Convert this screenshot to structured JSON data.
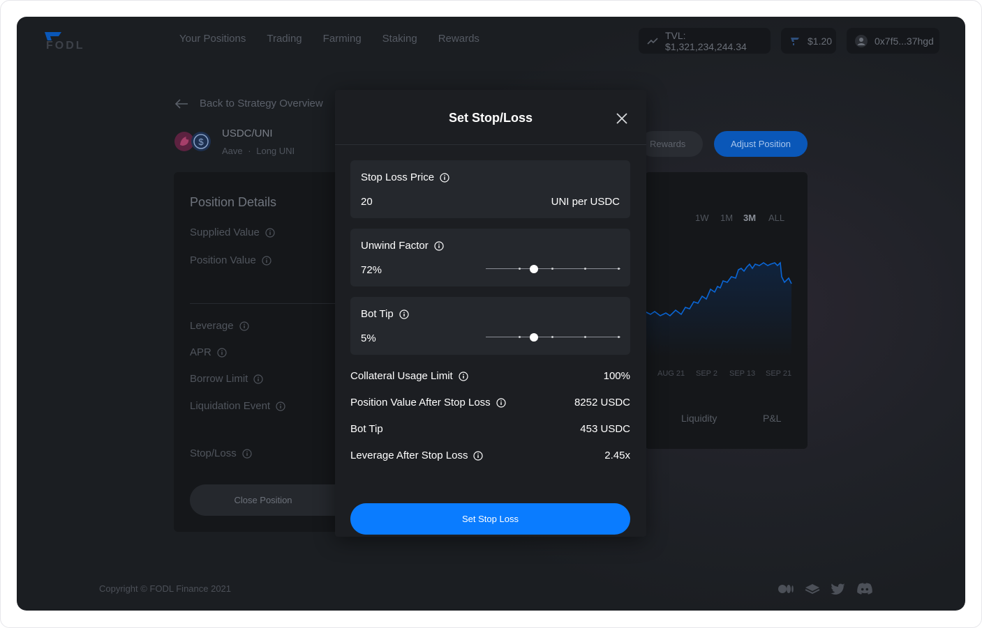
{
  "header": {
    "logo_text": "FODL",
    "nav": [
      "Your Positions",
      "Trading",
      "Farming",
      "Staking",
      "Rewards"
    ],
    "tvl": "TVL: $1,321,234,244.34",
    "price": "$1.20",
    "wallet": "0x7f5...37hgd"
  },
  "strategy": {
    "back_label": "Back to Strategy Overview",
    "pair": "USDC/UNI",
    "platform": "Aave",
    "separator": "·",
    "direction": "Long UNI",
    "rewards_label": "Rewards",
    "adjust_label": "Adjust Position"
  },
  "details": {
    "title": "Position Details",
    "rows": [
      "Supplied Value",
      "Position Value",
      "Leverage",
      "APR",
      "Borrow Limit",
      "Liquidation Event",
      "Stop/Loss"
    ],
    "close_label": "Close Position"
  },
  "chart_panel": {
    "ranges": [
      "1W",
      "1M",
      "3M",
      "ALL"
    ],
    "active_range": "3M",
    "x_ticks": [
      "AUG 21",
      "SEP 2",
      "SEP 13",
      "SEP 21"
    ],
    "tabs": [
      "Liquidity",
      "P&L"
    ]
  },
  "modal": {
    "title": "Set Stop/Loss",
    "stop_loss": {
      "label": "Stop Loss Price",
      "value": "20",
      "unit": "UNI per USDC"
    },
    "unwind": {
      "label": "Unwind Factor",
      "value": "72%",
      "level": 0.36
    },
    "bot_tip": {
      "label": "Bot Tip",
      "value": "5%",
      "level": 0.36
    },
    "info": [
      {
        "label": "Collateral Usage Limit",
        "value": "100%",
        "has_info": true
      },
      {
        "label": "Position Value After Stop Loss",
        "value": "8252 USDC",
        "has_info": true
      },
      {
        "label": "Bot Tip",
        "value": "453 USDC",
        "has_info": false
      },
      {
        "label": "Leverage After Stop Loss",
        "value": "2.45x",
        "has_info": true
      }
    ],
    "submit_label": "Set Stop Loss"
  },
  "footer": {
    "copyright": "Copyright © FODL Finance 2021",
    "social": [
      "medium-icon",
      "gitbook-icon",
      "twitter-icon",
      "discord-icon"
    ]
  },
  "colors": {
    "accent": "#0a7cff",
    "background": "#1b1e22",
    "modal": "#1c1e22"
  }
}
